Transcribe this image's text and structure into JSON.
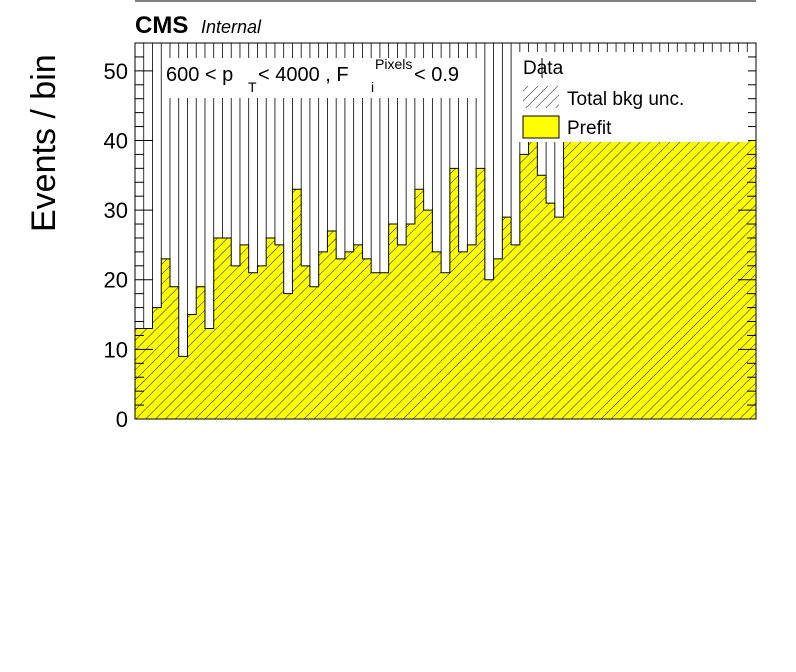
{
  "header": {
    "experiment": "CMS",
    "status": "Internal"
  },
  "annotation": {
    "lead": "600 < p",
    "pt_sub": "T",
    "mid": " < 4000 , F",
    "f_sub": "i",
    "f_sup": "Pixels",
    "tail": " < 0.9"
  },
  "legend": {
    "entries": [
      {
        "label": "Data",
        "style": "marker"
      },
      {
        "label": "Total bkg unc.",
        "style": "hatch"
      },
      {
        "label": "Prefit",
        "style": "fill"
      }
    ]
  },
  "colors": {
    "prefit": "#ffff00",
    "outline": "#000000"
  },
  "chart_data": {
    "type": "bar",
    "title": "",
    "xlabel": "",
    "ylabel": "Events / bin",
    "ylim": [
      0,
      54
    ],
    "yticks": [
      0,
      10,
      20,
      30,
      40,
      50
    ],
    "nbins": 71,
    "series": [
      {
        "name": "Prefit",
        "values": [
          13,
          13,
          16,
          23,
          19,
          9,
          15,
          19,
          13,
          26,
          26,
          22,
          25,
          21,
          22,
          26,
          25,
          18,
          33,
          22,
          19,
          24,
          27,
          23,
          24,
          25,
          23,
          21,
          21,
          28,
          25,
          28,
          33,
          30,
          24,
          21,
          36,
          24,
          25,
          36,
          20,
          23,
          29,
          25,
          38,
          40,
          35,
          31,
          29,
          40,
          40,
          40,
          40,
          40,
          40,
          40,
          40,
          40,
          40,
          40,
          40,
          40,
          40,
          40,
          40,
          40,
          40,
          40,
          40,
          40,
          40
        ]
      }
    ]
  }
}
